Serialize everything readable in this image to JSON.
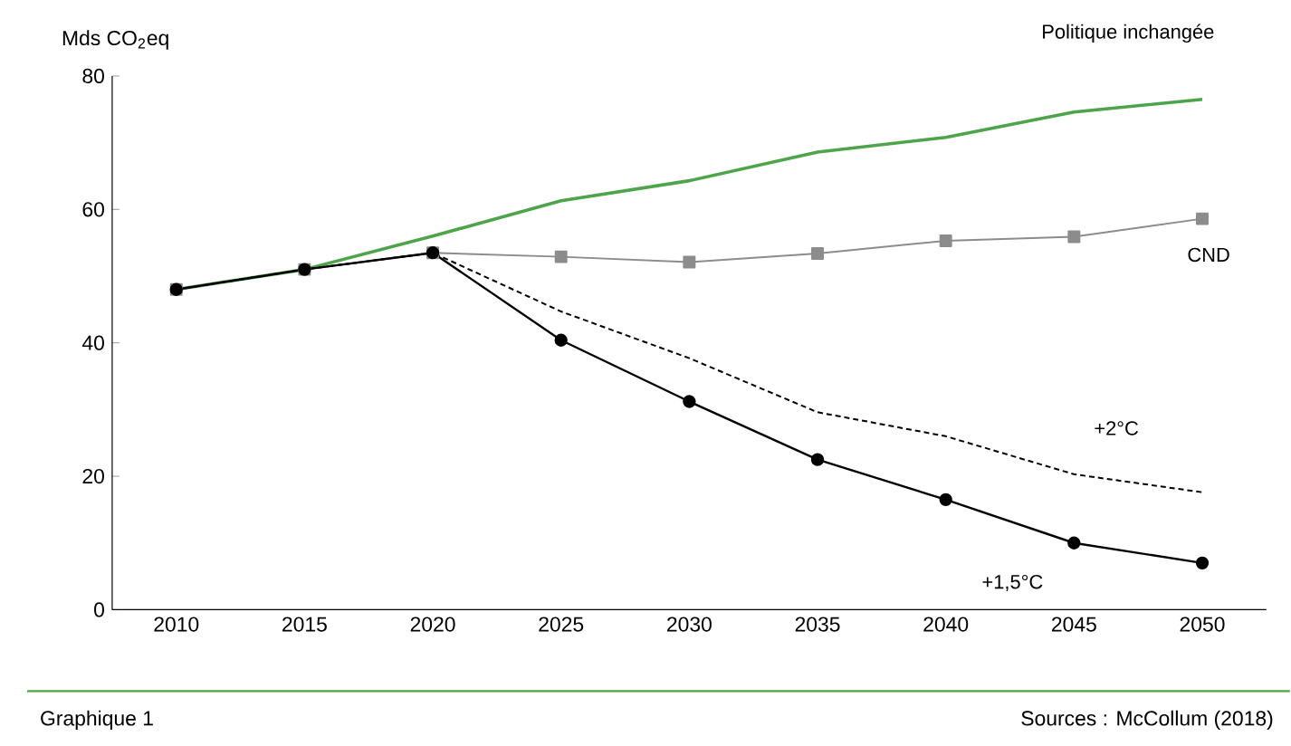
{
  "chart_data": {
    "type": "line",
    "ylabel": "Mds CO$_{2}$eq",
    "categories": [
      "2010",
      "2015",
      "2020",
      "2025",
      "2030",
      "2035",
      "2040",
      "2045",
      "2050"
    ],
    "ylim": [
      0,
      80
    ],
    "yticks": [
      0,
      20,
      40,
      60,
      80
    ],
    "legend": false,
    "series": [
      {
        "name": "Politique inchangée",
        "color": "#4ea44b",
        "marker": "none",
        "line_style": "solid",
        "values": [
          48,
          51,
          56,
          61.3,
          64.3,
          68.6,
          70.8,
          74.6,
          76.5
        ]
      },
      {
        "name": "CND",
        "color": "#8c8c8c",
        "marker": "square",
        "line_style": "solid",
        "values": [
          48,
          51,
          53.5,
          52.9,
          52.1,
          53.4,
          55.3,
          55.9,
          58.6
        ]
      },
      {
        "name": "+2°C",
        "color": "#000000",
        "marker": "none",
        "line_style": "dashed",
        "values": [
          48,
          51,
          53.5,
          44.7,
          37.7,
          29.6,
          26,
          20.3,
          17.6
        ]
      },
      {
        "name": "+1,5°C",
        "color": "#000000",
        "marker": "circle",
        "line_style": "solid",
        "values": [
          48,
          51,
          53.5,
          40.4,
          31.2,
          22.5,
          16.5,
          10,
          7
        ]
      }
    ],
    "annotations": [
      "Graphique 1",
      "Sources : McCollum (2018)"
    ]
  }
}
